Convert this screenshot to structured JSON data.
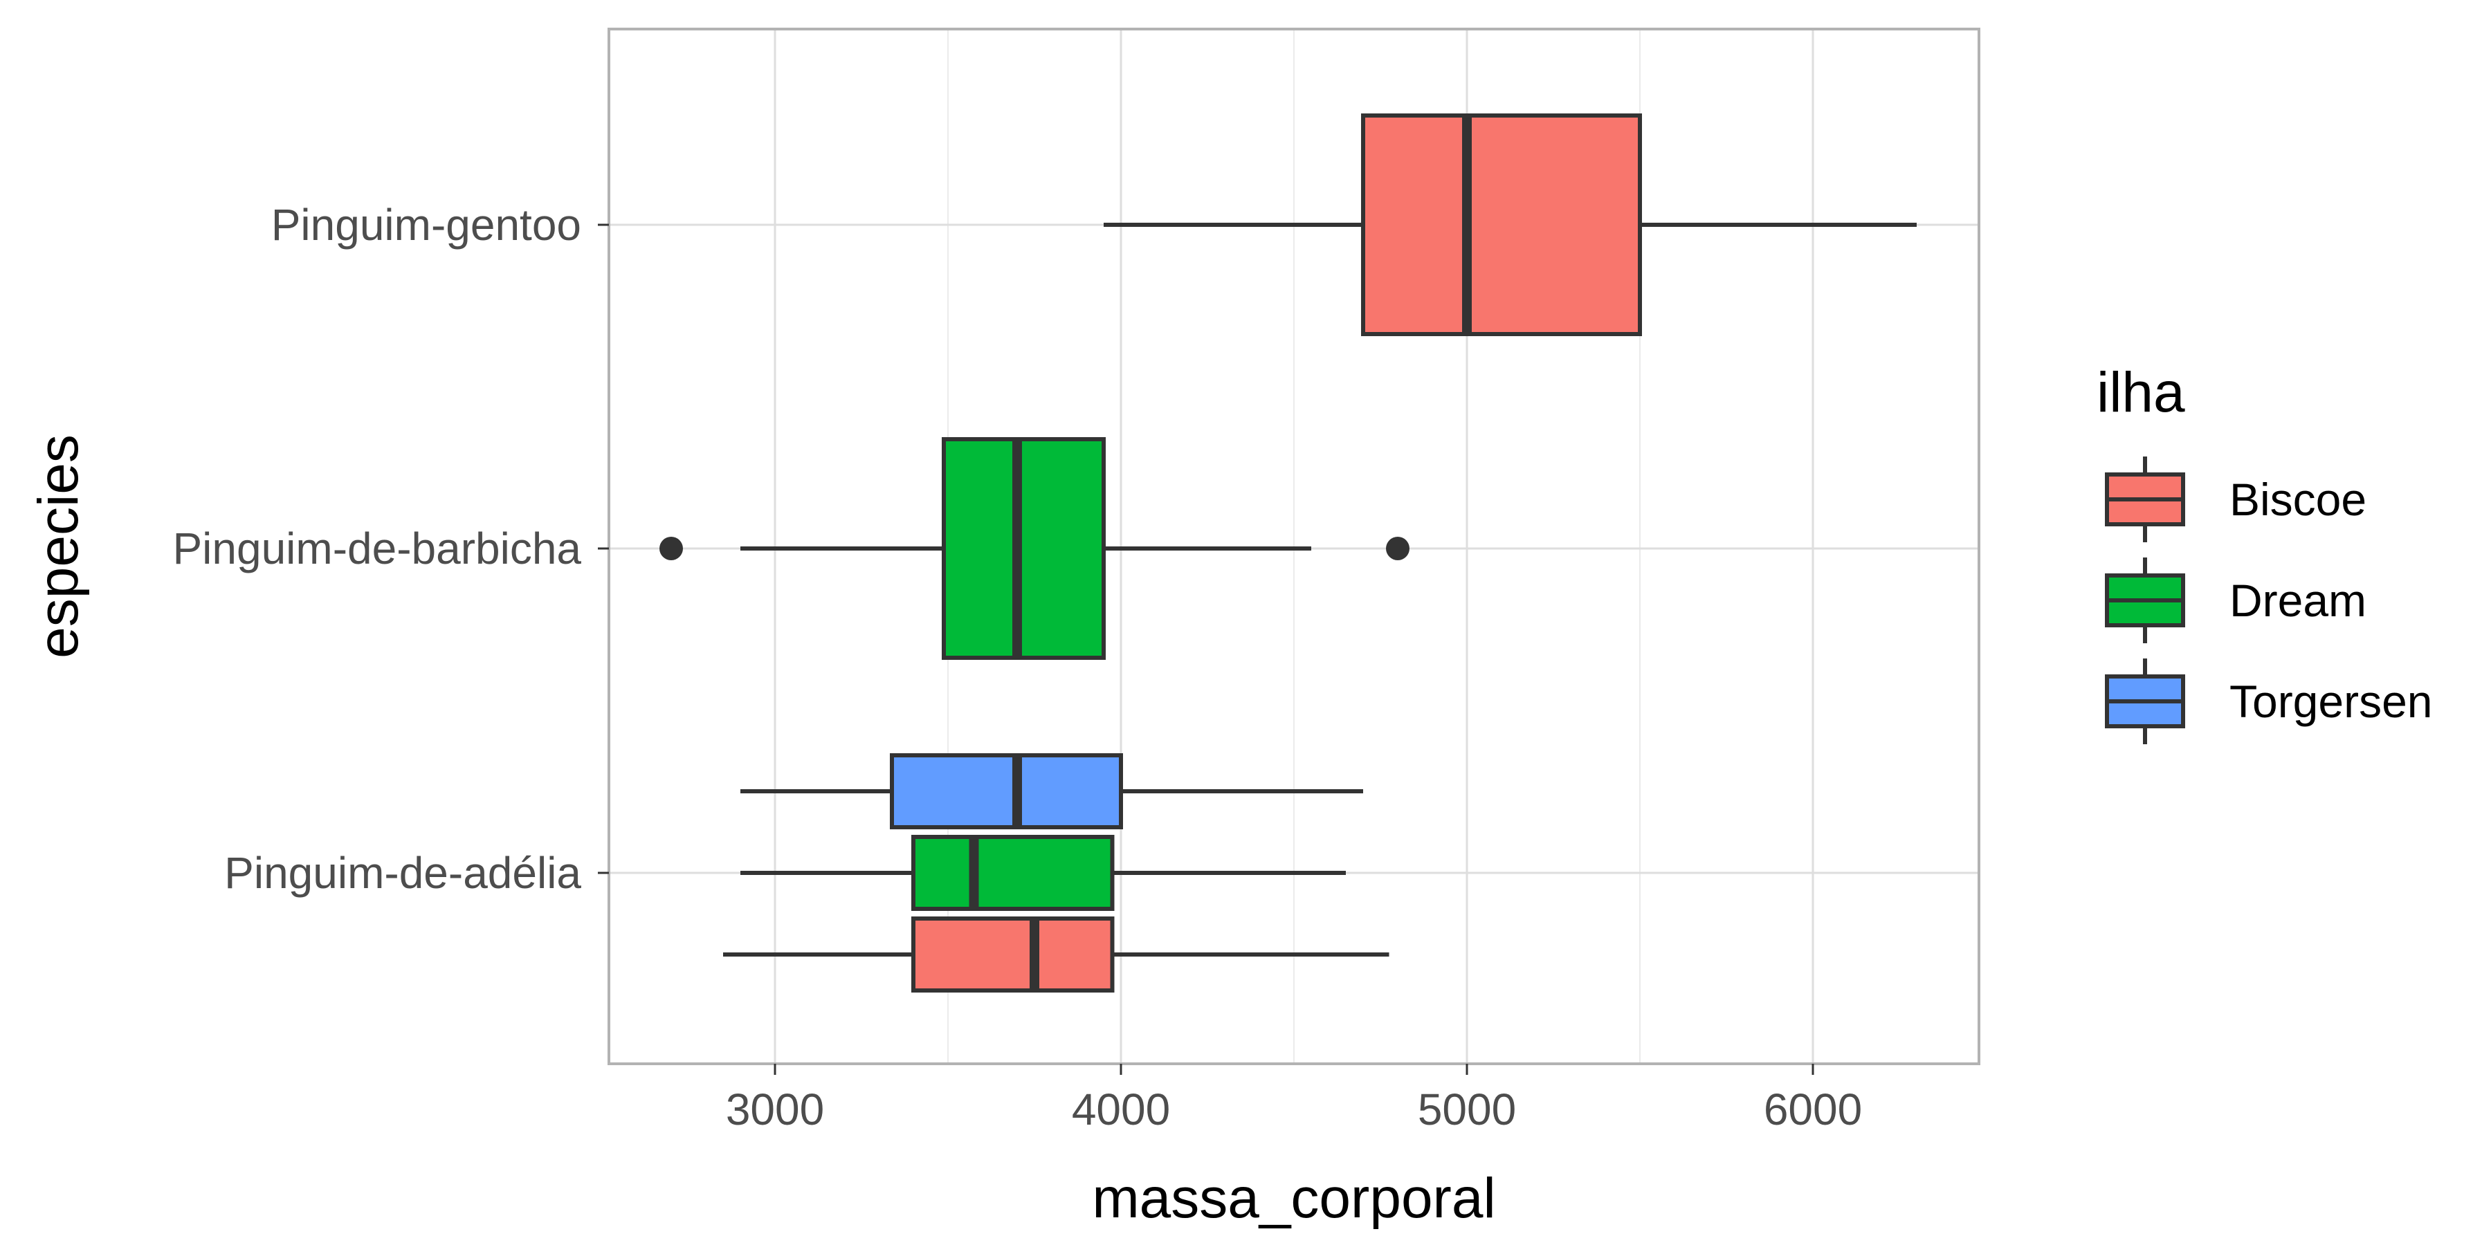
{
  "chart_data": {
    "type": "boxplot",
    "orientation": "horizontal",
    "xlabel": "massa_corporal",
    "ylabel": "especies",
    "xlim": [
      2520,
      6480
    ],
    "xticks": [
      3000,
      4000,
      5000,
      6000
    ],
    "xtick_labels": [
      "3000",
      "4000",
      "5000",
      "6000"
    ],
    "categories": [
      "Pinguim-gentoo",
      "Pinguim-de-barbicha",
      "Pinguim-de-adélia"
    ],
    "grid": true,
    "legend": {
      "title": "ilha",
      "position": "right",
      "entries": [
        "Biscoe",
        "Dream",
        "Torgersen"
      ]
    },
    "colors": {
      "Biscoe": "#F8766D",
      "Dream": "#00BA38",
      "Torgersen": "#619CFF"
    },
    "boxes": [
      {
        "category": "Pinguim-gentoo",
        "group": "Biscoe",
        "whisker_low": 3950,
        "q1": 4700,
        "median": 5000,
        "q3": 5500,
        "whisker_high": 6300,
        "outliers": []
      },
      {
        "category": "Pinguim-de-barbicha",
        "group": "Dream",
        "whisker_low": 2900,
        "q1": 3488,
        "median": 3700,
        "q3": 3950,
        "whisker_high": 4550,
        "outliers": [
          2700,
          4800
        ]
      },
      {
        "category": "Pinguim-de-adélia",
        "group": "Torgersen",
        "whisker_low": 2900,
        "q1": 3338,
        "median": 3700,
        "q3": 4000,
        "whisker_high": 4700,
        "outliers": []
      },
      {
        "category": "Pinguim-de-adélia",
        "group": "Dream",
        "whisker_low": 2900,
        "q1": 3400,
        "median": 3575,
        "q3": 3975,
        "whisker_high": 4650,
        "outliers": []
      },
      {
        "category": "Pinguim-de-adélia",
        "group": "Biscoe",
        "whisker_low": 2850,
        "q1": 3400,
        "median": 3750,
        "q3": 3975,
        "whisker_high": 4775,
        "outliers": []
      }
    ]
  }
}
